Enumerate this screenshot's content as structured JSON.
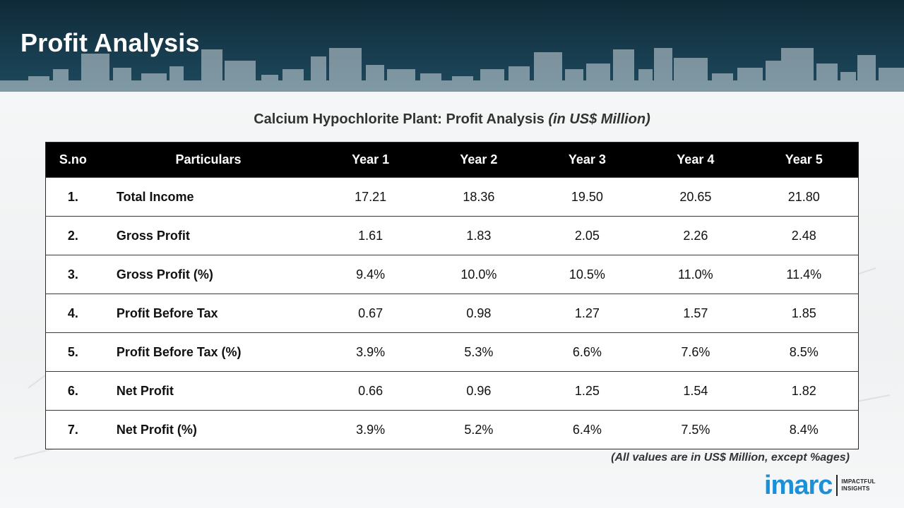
{
  "header": {
    "title": "Profit Analysis"
  },
  "table_title": {
    "main": "Calcium Hypochlorite Plant: Profit Analysis",
    "unit": "(in US$ Million)"
  },
  "table": {
    "columns": [
      "S.no",
      "Particulars",
      "Year 1",
      "Year 2",
      "Year 3",
      "Year 4",
      "Year 5"
    ],
    "rows": [
      {
        "sno": "1.",
        "label": "Total Income",
        "values": [
          "17.21",
          "18.36",
          "19.50",
          "20.65",
          "21.80"
        ]
      },
      {
        "sno": "2.",
        "label": "Gross Profit",
        "values": [
          "1.61",
          "1.83",
          "2.05",
          "2.26",
          "2.48"
        ]
      },
      {
        "sno": "3.",
        "label": "Gross Profit (%)",
        "values": [
          "9.4%",
          "10.0%",
          "10.5%",
          "11.0%",
          "11.4%"
        ]
      },
      {
        "sno": "4.",
        "label": "Profit Before Tax",
        "values": [
          "0.67",
          "0.98",
          "1.27",
          "1.57",
          "1.85"
        ]
      },
      {
        "sno": "5.",
        "label": "Profit Before Tax (%)",
        "values": [
          "3.9%",
          "5.3%",
          "6.6%",
          "7.6%",
          "8.5%"
        ]
      },
      {
        "sno": "6.",
        "label": "Net Profit",
        "values": [
          "0.66",
          "0.96",
          "1.25",
          "1.54",
          "1.82"
        ]
      },
      {
        "sno": "7.",
        "label": "Net Profit (%)",
        "values": [
          "3.9%",
          "5.2%",
          "6.4%",
          "7.5%",
          "8.4%"
        ]
      }
    ]
  },
  "footnote": "(All values are in US$ Million, except %ages)",
  "logo": {
    "wordmark": "imarc",
    "tagline_line1": "IMPACTFUL",
    "tagline_line2": "INSIGHTS"
  },
  "colors": {
    "header_bg": "#16394a",
    "table_header_bg": "#000000",
    "brand_blue": "#1d8fd6"
  }
}
